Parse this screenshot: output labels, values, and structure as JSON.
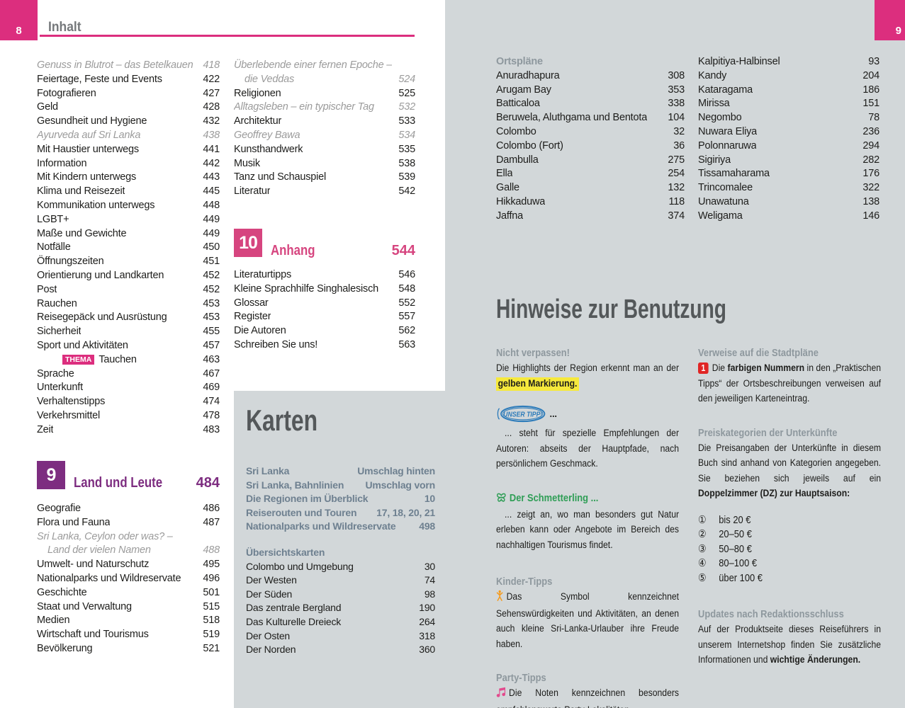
{
  "colors": {
    "pink": "#dc2e7e",
    "section_pink": "#d6457f",
    "purple": "#7d2d80",
    "page_gray": "#d2d7d9",
    "title_gray": "#54585a",
    "heading_slate": "#8e989e",
    "green": "#2f9e56",
    "orange": "#f59b1e",
    "party_pink": "#e24a8d",
    "red_badge": "#e02524",
    "tipp_blue": "#2e7cba",
    "highlight_yellow": "#f6e93c"
  },
  "page_left": {
    "page_number": "8",
    "header_title": "Inhalt",
    "toc_col1": [
      {
        "label": "Genuss in Blutrot – das Betelkauen",
        "page": "418",
        "style": "italic"
      },
      {
        "label": "Feiertage, Feste und Events",
        "page": "422"
      },
      {
        "label": "Fotografieren",
        "page": "427"
      },
      {
        "label": "Geld",
        "page": "428"
      },
      {
        "label": "Gesundheit und Hygiene",
        "page": "432"
      },
      {
        "label": "Ayurveda auf Sri Lanka",
        "page": "438",
        "style": "italic"
      },
      {
        "label": "Mit Haustier unterwegs",
        "page": "441"
      },
      {
        "label": "Information",
        "page": "442"
      },
      {
        "label": "Mit Kindern unterwegs",
        "page": "443"
      },
      {
        "label": "Klima und Reisezeit",
        "page": "445"
      },
      {
        "label": "Kommunikation unterwegs",
        "page": "448"
      },
      {
        "label": "LGBT+",
        "page": "449"
      },
      {
        "label": "Maße und Gewichte",
        "page": "449"
      },
      {
        "label": "Notfälle",
        "page": "450"
      },
      {
        "label": "Öffnungszeiten",
        "page": "451"
      },
      {
        "label": "Orientierung und Landkarten",
        "page": "452"
      },
      {
        "label": "Post",
        "page": "452"
      },
      {
        "label": "Rauchen",
        "page": "453"
      },
      {
        "label": "Reisegepäck und Ausrüstung",
        "page": "453"
      },
      {
        "label": "Sicherheit",
        "page": "455"
      },
      {
        "label": "Sport und Aktivitäten",
        "page": "457"
      },
      {
        "label": "Tauchen",
        "page": "463",
        "style": "thema",
        "badge": "THEMA"
      },
      {
        "label": "Sprache",
        "page": "467"
      },
      {
        "label": "Unterkunft",
        "page": "469"
      },
      {
        "label": "Verhaltenstipps",
        "page": "474"
      },
      {
        "label": "Verkehrsmittel",
        "page": "478"
      },
      {
        "label": "Zeit",
        "page": "483"
      }
    ],
    "section9": {
      "number": "9",
      "title": "Land und Leute",
      "page": "484",
      "entries": [
        {
          "label": "Geografie",
          "page": "486"
        },
        {
          "label": "Flora und Fauna",
          "page": "487"
        },
        {
          "label": "Sri Lanka, Ceylon oder was? –",
          "page": "",
          "style": "italic"
        },
        {
          "label": "Land der vielen Namen",
          "page": "488",
          "style": "italic indent"
        },
        {
          "label": "Umwelt- und Naturschutz",
          "page": "495"
        },
        {
          "label": "Nationalparks und Wildreservate",
          "page": "496"
        },
        {
          "label": "Geschichte",
          "page": "501"
        },
        {
          "label": "Staat und Verwaltung",
          "page": "515"
        },
        {
          "label": "Medien",
          "page": "518"
        },
        {
          "label": "Wirtschaft und Tourismus",
          "page": "519"
        },
        {
          "label": "Bevölkerung",
          "page": "521"
        }
      ]
    },
    "toc_col2": [
      {
        "label": "Überlebende einer fernen Epoche –",
        "page": "",
        "style": "italic"
      },
      {
        "label": "die Veddas",
        "page": "524",
        "style": "italic indent"
      },
      {
        "label": "Religionen",
        "page": "525"
      },
      {
        "label": "Alltagsleben – ein typischer Tag",
        "page": "532",
        "style": "italic"
      },
      {
        "label": "Architektur",
        "page": "533"
      },
      {
        "label": "Geoffrey Bawa",
        "page": "534",
        "style": "italic"
      },
      {
        "label": "Kunsthandwerk",
        "page": "535"
      },
      {
        "label": "Musik",
        "page": "538"
      },
      {
        "label": "Tanz und Schauspiel",
        "page": "539"
      },
      {
        "label": "Literatur",
        "page": "542"
      }
    ],
    "section10": {
      "number": "10",
      "title": "Anhang",
      "page": "544",
      "entries": [
        {
          "label": "Literaturtipps",
          "page": "546"
        },
        {
          "label": "Kleine Sprachhilfe Singhalesisch",
          "page": "548"
        },
        {
          "label": "Glossar",
          "page": "552"
        },
        {
          "label": "Register",
          "page": "557"
        },
        {
          "label": "Die Autoren",
          "page": "562"
        },
        {
          "label": "Schreiben Sie uns!",
          "page": "563"
        }
      ]
    },
    "karten": {
      "title": "Karten",
      "map_list": [
        {
          "label": "Sri Lanka",
          "page": "Umschlag hinten"
        },
        {
          "label": "Sri Lanka, Bahnlinien",
          "page": "Umschlag vorn"
        },
        {
          "label": "Die Regionen im Überblick",
          "page": "10"
        },
        {
          "label": "Reiserouten und Touren",
          "page": "17, 18, 20, 21"
        },
        {
          "label": "Nationalparks und Wildreservate",
          "page": "498"
        }
      ],
      "subheading": "Übersichtskarten",
      "overview_list": [
        {
          "label": "Colombo und Umgebung",
          "page": "30"
        },
        {
          "label": "Der Westen",
          "page": "74"
        },
        {
          "label": "Der Süden",
          "page": "98"
        },
        {
          "label": "Das zentrale Bergland",
          "page": "190"
        },
        {
          "label": "Das Kulturelle Dreieck",
          "page": "264"
        },
        {
          "label": "Der Osten",
          "page": "318"
        },
        {
          "label": "Der Norden",
          "page": "360"
        }
      ]
    }
  },
  "page_right": {
    "page_number": "9",
    "ortsplaene_heading": "Ortspläne",
    "ortsplaene_col1": [
      {
        "label": "Anuradhapura",
        "page": "308"
      },
      {
        "label": "Arugam Bay",
        "page": "353"
      },
      {
        "label": "Batticaloa",
        "page": "338"
      },
      {
        "label": "Beruwela, Aluthgama und Bentota",
        "page": "104"
      },
      {
        "label": "Colombo",
        "page": "32"
      },
      {
        "label": "Colombo (Fort)",
        "page": "36"
      },
      {
        "label": "Dambulla",
        "page": "275"
      },
      {
        "label": "Ella",
        "page": "254"
      },
      {
        "label": "Galle",
        "page": "132"
      },
      {
        "label": "Hikkaduwa",
        "page": "118"
      },
      {
        "label": "Jaffna",
        "page": "374"
      }
    ],
    "ortsplaene_col2": [
      {
        "label": "Kalpitiya-Halbinsel",
        "page": "93"
      },
      {
        "label": "Kandy",
        "page": "204"
      },
      {
        "label": "Kataragama",
        "page": "186"
      },
      {
        "label": "Mirissa",
        "page": "151"
      },
      {
        "label": "Negombo",
        "page": "78"
      },
      {
        "label": "Nuwara Eliya",
        "page": "236"
      },
      {
        "label": "Polonnaruwa",
        "page": "294"
      },
      {
        "label": "Sigiriya",
        "page": "282"
      },
      {
        "label": "Tissamaharama",
        "page": "176"
      },
      {
        "label": "Trincomalee",
        "page": "322"
      },
      {
        "label": "Unawatuna",
        "page": "138"
      },
      {
        "label": "Weligama",
        "page": "146"
      }
    ],
    "title": "Hinweise zur Benutzung",
    "tip_nicht_verpassen": {
      "heading": "Nicht verpassen!",
      "body": [
        {
          "t": "Die Highlights der Region erkennt man an der "
        },
        {
          "t": "gelben Markierung.",
          "s": "hl"
        }
      ]
    },
    "tip_unser_tipp": {
      "badge_text": "UNSER TIPP!",
      "after_badge": "...",
      "body": [
        {
          "t": "... steht für spezielle Empfehlungen der Autoren: abseits der Hauptpfade, nach persönlichem Geschmack."
        }
      ]
    },
    "tip_schmetterling": {
      "heading": "Der Schmetterling ...",
      "body": [
        {
          "t": "... zeigt an, wo man besonders gut Natur erleben kann oder Angebote im Bereich des nachhaltigen Tourismus findet."
        }
      ]
    },
    "tip_kinder": {
      "heading": "Kinder-Tipps",
      "body": [
        {
          "t": "Das Symbol kennzeichnet Sehenswürdigkeiten und Aktivitäten, an denen auch kleine Sri-Lanka-Urlauber ihre Freude haben."
        }
      ]
    },
    "tip_party": {
      "heading": "Party-Tipps",
      "body": [
        {
          "t": "Die Noten kennzeichnen besonders empfehlenswerte Party-Lokalitäten."
        }
      ]
    },
    "tip_verweise": {
      "heading": "Verweise auf die Stadtpläne",
      "badge": "1",
      "body": [
        {
          "t": "Die "
        },
        {
          "t": "farbigen Nummern",
          "s": "b"
        },
        {
          "t": " in den „Praktischen Tipps“ der Ortsbeschreibungen verweisen auf den jeweiligen Karteneintrag."
        }
      ]
    },
    "tip_preis": {
      "heading": "Preiskategorien der Unterkünfte",
      "body": [
        {
          "t": "Die Preisangaben der Unterkünfte in diesem Buch sind anhand von Kategorien angegeben. Sie beziehen sich jeweils auf ein "
        },
        {
          "t": "Doppelzimmer (DZ) zur Hauptsaison:",
          "s": "b"
        }
      ],
      "prices": [
        {
          "num": "①",
          "val": "bis 20 €"
        },
        {
          "num": "②",
          "val": "20–50 €"
        },
        {
          "num": "③",
          "val": "50–80 €"
        },
        {
          "num": "④",
          "val": "80–100 €"
        },
        {
          "num": "⑤",
          "val": "über 100 €"
        }
      ]
    },
    "tip_updates": {
      "heading": "Updates nach Redaktionsschluss",
      "body": [
        {
          "t": "Auf der Produktseite dieses Reiseführers in unserem Internetshop finden Sie zusätzliche Informationen und "
        },
        {
          "t": "wichtige Änderungen.",
          "s": "b"
        }
      ]
    }
  }
}
